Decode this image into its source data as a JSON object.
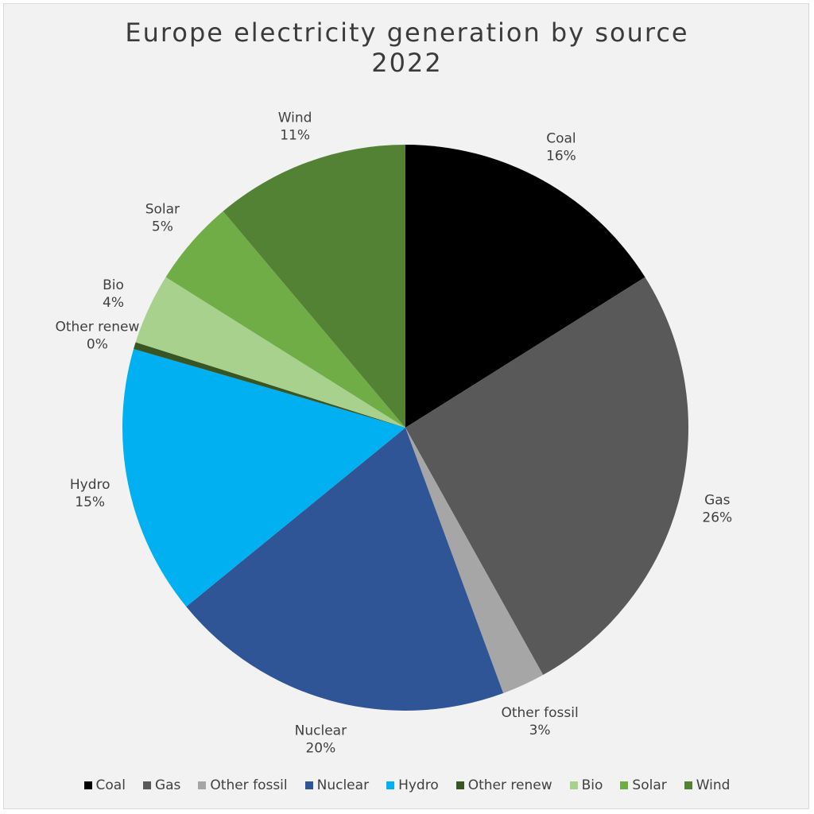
{
  "chart_data": {
    "type": "pie",
    "title": "Europe electricity generation by source 2022",
    "title_lines": [
      "Europe electricity generation by source",
      "2022"
    ],
    "start_angle_deg": 0,
    "direction": "clockwise",
    "legend_position": "bottom",
    "slices": [
      {
        "label": "Coal",
        "value": 16.3,
        "display": "16%",
        "color": "#000000"
      },
      {
        "label": "Gas",
        "value": 26.2,
        "display": "26%",
        "color": "#595959"
      },
      {
        "label": "Other fossil",
        "value": 2.5,
        "display": "3%",
        "color": "#a6a6a6"
      },
      {
        "label": "Nuclear",
        "value": 20.0,
        "display": "20%",
        "color": "#2f5597"
      },
      {
        "label": "Hydro",
        "value": 15.6,
        "display": "15%",
        "color": "#00b0f0"
      },
      {
        "label": "Other renew",
        "value": 0.4,
        "display": "0%",
        "color": "#375623"
      },
      {
        "label": "Bio",
        "value": 4.1,
        "display": "4%",
        "color": "#a9d18e"
      },
      {
        "label": "Solar",
        "value": 5.0,
        "display": "5%",
        "color": "#70ad47"
      },
      {
        "label": "Wind",
        "value": 11.3,
        "display": "11%",
        "color": "#548235"
      }
    ]
  }
}
